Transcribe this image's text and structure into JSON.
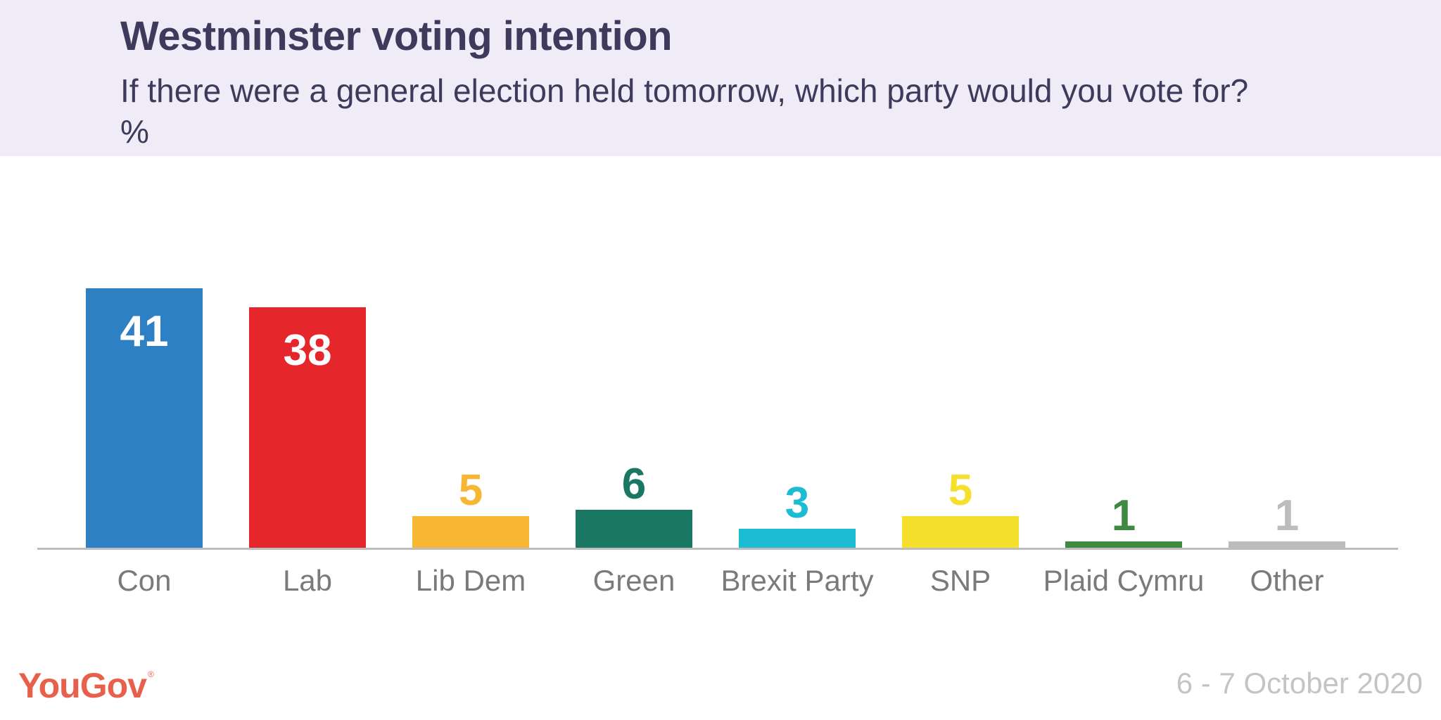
{
  "header": {
    "title": "Westminster voting intention",
    "subtitle": "If there were a general election held tomorrow, which party would you vote for? %"
  },
  "footer": {
    "logo": "YouGov",
    "date": "6 - 7 October 2020"
  },
  "chart_data": {
    "type": "bar",
    "title": "Westminster voting intention",
    "subtitle": "If there were a general election held tomorrow, which party would you vote for? %",
    "categories": [
      "Con",
      "Lab",
      "Lib Dem",
      "Green",
      "Brexit Party",
      "SNP",
      "Plaid Cymru",
      "Other"
    ],
    "values": [
      41,
      38,
      5,
      6,
      3,
      5,
      1,
      1
    ],
    "colors": [
      "#2e80c5",
      "#e5262b",
      "#f7b733",
      "#1a7763",
      "#1bbcd4",
      "#f5e02e",
      "#3d8a40",
      "#bcbcbc"
    ],
    "label_colors": [
      "#ffffff",
      "#ffffff",
      "#f7b733",
      "#1a7763",
      "#1bbcd4",
      "#f5e02e",
      "#3d8a40",
      "#bcbcbc"
    ],
    "label_position": [
      "inside",
      "inside",
      "above",
      "above",
      "above",
      "above",
      "above",
      "above"
    ],
    "ylim": [
      0,
      45
    ],
    "grid": false,
    "axis_color": "#bdbdbd",
    "category_label_color": "#7a7a7a"
  }
}
